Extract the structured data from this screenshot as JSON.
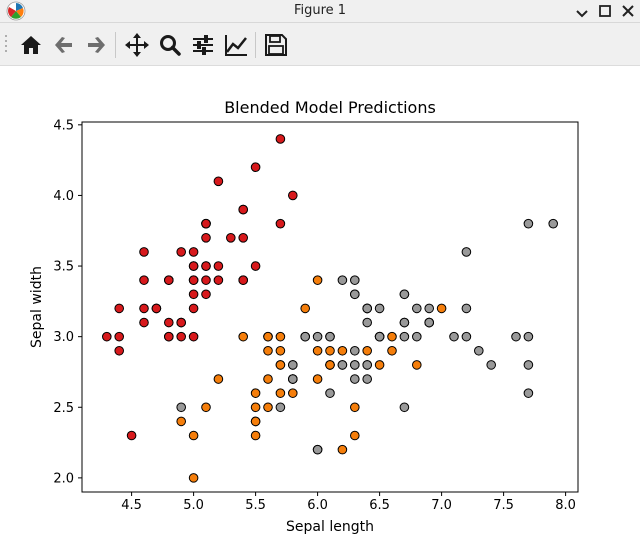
{
  "window": {
    "title": "Figure 1"
  },
  "toolbar": {
    "buttons": [
      {
        "name": "home-button",
        "icon": "home-icon"
      },
      {
        "name": "back-button",
        "icon": "arrow-left-icon"
      },
      {
        "name": "forward-button",
        "icon": "arrow-right-icon"
      },
      {
        "name": "pan-button",
        "icon": "move-icon"
      },
      {
        "name": "zoom-button",
        "icon": "magnifier-icon"
      },
      {
        "name": "subplots-button",
        "icon": "sliders-icon"
      },
      {
        "name": "customize-button",
        "icon": "line-chart-icon"
      },
      {
        "name": "save-button",
        "icon": "floppy-disk-icon"
      }
    ]
  },
  "colors": {
    "class0": "#d7191c",
    "class1": "#f57e0b",
    "class2": "#999999"
  },
  "chart_data": {
    "type": "scatter",
    "title": "Blended Model Predictions",
    "xlabel": "Sepal length",
    "ylabel": "Sepal width",
    "xlim": [
      4.1,
      8.1
    ],
    "ylim": [
      1.9,
      4.52
    ],
    "xticks": [
      "4.5",
      "5.0",
      "5.5",
      "6.0",
      "6.5",
      "7.0",
      "7.5",
      "8.0"
    ],
    "yticks": [
      "2.0",
      "2.5",
      "3.0",
      "3.5",
      "4.0",
      "4.5"
    ],
    "grid": false,
    "series": [
      {
        "color": "#d7191c",
        "points": [
          [
            5.1,
            3.5
          ],
          [
            4.9,
            3.0
          ],
          [
            4.7,
            3.2
          ],
          [
            4.6,
            3.1
          ],
          [
            5.0,
            3.6
          ],
          [
            5.4,
            3.9
          ],
          [
            4.6,
            3.4
          ],
          [
            5.0,
            3.4
          ],
          [
            4.4,
            2.9
          ],
          [
            4.9,
            3.1
          ],
          [
            5.4,
            3.7
          ],
          [
            4.8,
            3.4
          ],
          [
            4.8,
            3.0
          ],
          [
            4.3,
            3.0
          ],
          [
            5.8,
            4.0
          ],
          [
            5.7,
            4.4
          ],
          [
            5.4,
            3.9
          ],
          [
            5.1,
            3.5
          ],
          [
            5.7,
            3.8
          ],
          [
            5.1,
            3.8
          ],
          [
            5.4,
            3.4
          ],
          [
            5.1,
            3.7
          ],
          [
            4.6,
            3.6
          ],
          [
            5.1,
            3.3
          ],
          [
            4.8,
            3.4
          ],
          [
            5.0,
            3.0
          ],
          [
            5.0,
            3.4
          ],
          [
            5.2,
            3.5
          ],
          [
            5.2,
            3.4
          ],
          [
            4.7,
            3.2
          ],
          [
            4.8,
            3.1
          ],
          [
            5.4,
            3.4
          ],
          [
            5.2,
            4.1
          ],
          [
            5.5,
            4.2
          ],
          [
            4.9,
            3.1
          ],
          [
            5.0,
            3.2
          ],
          [
            5.5,
            3.5
          ],
          [
            4.9,
            3.6
          ],
          [
            4.4,
            3.0
          ],
          [
            5.1,
            3.4
          ],
          [
            5.0,
            3.5
          ],
          [
            4.5,
            2.3
          ],
          [
            4.4,
            3.2
          ],
          [
            5.0,
            3.5
          ],
          [
            5.1,
            3.8
          ],
          [
            4.8,
            3.0
          ],
          [
            5.1,
            3.8
          ],
          [
            4.6,
            3.2
          ],
          [
            5.3,
            3.7
          ],
          [
            5.0,
            3.3
          ]
        ]
      },
      {
        "color": "#f57e0b",
        "points": [
          [
            7.0,
            3.2
          ],
          [
            6.4,
            3.2
          ],
          [
            6.9,
            3.1
          ],
          [
            5.5,
            2.3
          ],
          [
            6.5,
            2.8
          ],
          [
            5.7,
            2.8
          ],
          [
            6.3,
            3.3
          ],
          [
            4.9,
            2.4
          ],
          [
            6.6,
            2.9
          ],
          [
            5.2,
            2.7
          ],
          [
            5.0,
            2.0
          ],
          [
            5.9,
            3.0
          ],
          [
            6.0,
            2.2
          ],
          [
            6.1,
            2.9
          ],
          [
            5.6,
            2.9
          ],
          [
            5.6,
            3.0
          ],
          [
            5.8,
            2.7
          ],
          [
            6.2,
            2.2
          ],
          [
            5.6,
            2.5
          ],
          [
            5.9,
            3.2
          ],
          [
            6.1,
            2.8
          ],
          [
            6.3,
            2.5
          ],
          [
            6.1,
            2.8
          ],
          [
            6.4,
            2.9
          ],
          [
            6.6,
            3.0
          ],
          [
            6.8,
            2.8
          ],
          [
            6.0,
            2.9
          ],
          [
            5.7,
            2.6
          ],
          [
            5.5,
            2.4
          ],
          [
            5.5,
            2.4
          ],
          [
            5.8,
            2.7
          ],
          [
            6.0,
            2.7
          ],
          [
            5.4,
            3.0
          ],
          [
            6.0,
            3.4
          ],
          [
            6.3,
            2.3
          ],
          [
            5.6,
            3.0
          ],
          [
            5.5,
            2.5
          ],
          [
            5.5,
            2.6
          ],
          [
            6.1,
            3.0
          ],
          [
            5.8,
            2.6
          ],
          [
            5.0,
            2.3
          ],
          [
            5.6,
            2.7
          ],
          [
            5.7,
            3.0
          ],
          [
            5.7,
            2.9
          ],
          [
            6.2,
            2.9
          ],
          [
            5.1,
            2.5
          ],
          [
            5.7,
            2.8
          ],
          [
            6.5,
            3.0
          ],
          [
            6.3,
            2.8
          ],
          [
            6.2,
            2.8
          ],
          [
            6.1,
            2.8
          ]
        ]
      },
      {
        "color": "#999999",
        "points": [
          [
            6.3,
            3.3
          ],
          [
            5.8,
            2.7
          ],
          [
            7.1,
            3.0
          ],
          [
            6.3,
            2.9
          ],
          [
            7.6,
            3.0
          ],
          [
            4.9,
            2.5
          ],
          [
            7.3,
            2.9
          ],
          [
            6.7,
            2.5
          ],
          [
            7.2,
            3.6
          ],
          [
            6.4,
            3.2
          ],
          [
            6.8,
            3.0
          ],
          [
            5.8,
            2.8
          ],
          [
            6.4,
            3.2
          ],
          [
            6.5,
            3.0
          ],
          [
            7.7,
            3.8
          ],
          [
            7.7,
            2.6
          ],
          [
            6.0,
            2.2
          ],
          [
            6.9,
            3.2
          ],
          [
            7.7,
            2.8
          ],
          [
            6.3,
            2.7
          ],
          [
            6.7,
            3.3
          ],
          [
            7.2,
            3.2
          ],
          [
            6.2,
            2.8
          ],
          [
            6.4,
            2.8
          ],
          [
            7.2,
            3.0
          ],
          [
            7.4,
            2.8
          ],
          [
            7.9,
            3.8
          ],
          [
            6.4,
            2.8
          ],
          [
            6.3,
            2.8
          ],
          [
            7.7,
            3.0
          ],
          [
            6.3,
            3.4
          ],
          [
            6.4,
            3.1
          ],
          [
            6.0,
            3.0
          ],
          [
            6.9,
            3.1
          ],
          [
            6.7,
            3.1
          ],
          [
            6.9,
            3.1
          ],
          [
            6.8,
            3.2
          ],
          [
            6.7,
            3.3
          ],
          [
            6.7,
            3.0
          ],
          [
            6.5,
            3.0
          ],
          [
            6.2,
            3.4
          ],
          [
            5.9,
            3.0
          ],
          [
            5.7,
            2.5
          ],
          [
            6.1,
            2.6
          ],
          [
            6.4,
            2.7
          ],
          [
            5.8,
            2.8
          ],
          [
            6.5,
            3.2
          ],
          [
            6.7,
            3.1
          ],
          [
            6.1,
            3.0
          ]
        ]
      }
    ]
  }
}
